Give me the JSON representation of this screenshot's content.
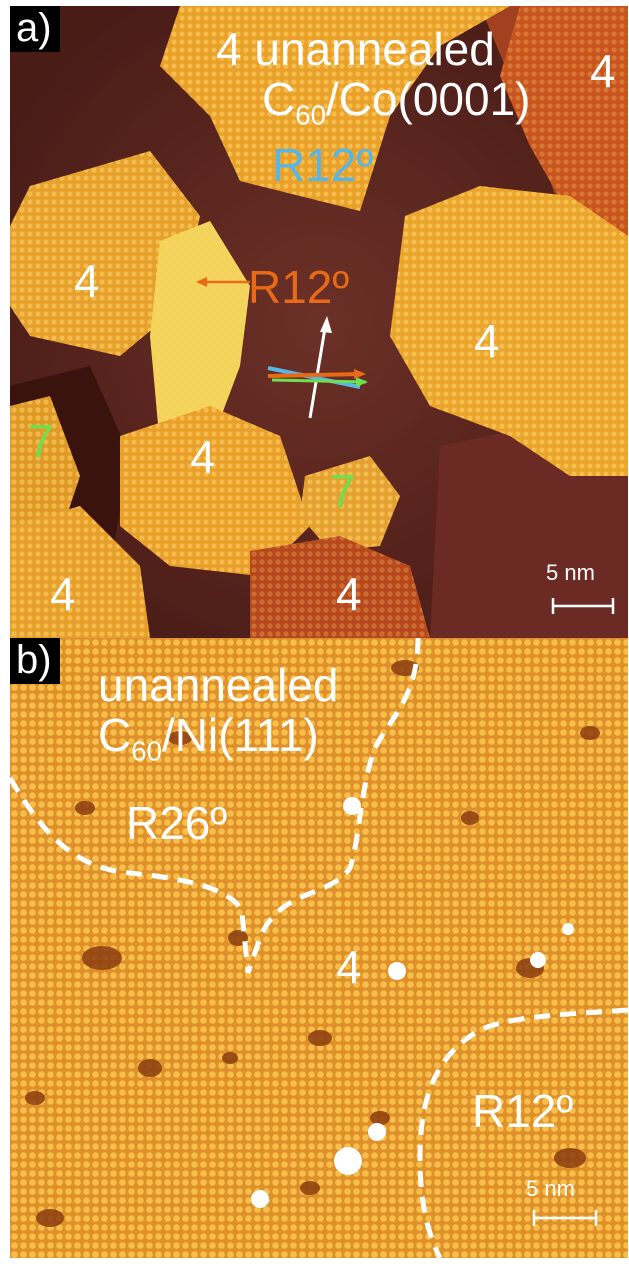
{
  "panel_a": {
    "letter": "a)",
    "title_line1": "4 unannealed",
    "title_line2_main": "C",
    "title_line2_sub": "60",
    "title_line2_rest": "/Co(0001)",
    "rotation_blue": "R12º",
    "rotation_orange": "R12º",
    "labels": [
      "4",
      "4",
      "4",
      "4",
      "4",
      "4"
    ],
    "labels_green": [
      "7",
      "7"
    ],
    "scale_bar": "5 nm",
    "colors": {
      "blue": "#57b6e8",
      "orange": "#e86a16",
      "green": "#6ee04e",
      "dark_bg": "#4a1c16",
      "island": "#e8a426"
    }
  },
  "panel_b": {
    "letter": "b)",
    "title_line1": "unannealed",
    "title_line2_main": "C",
    "title_line2_sub": "60",
    "title_line2_rest": "/Ni(111)",
    "rotation_left": "R26º",
    "center_label": "4",
    "rotation_right": "R12º",
    "scale_bar": "5 nm",
    "colors": {
      "bg": "#e79a2a",
      "defect": "#8a3d10"
    }
  }
}
